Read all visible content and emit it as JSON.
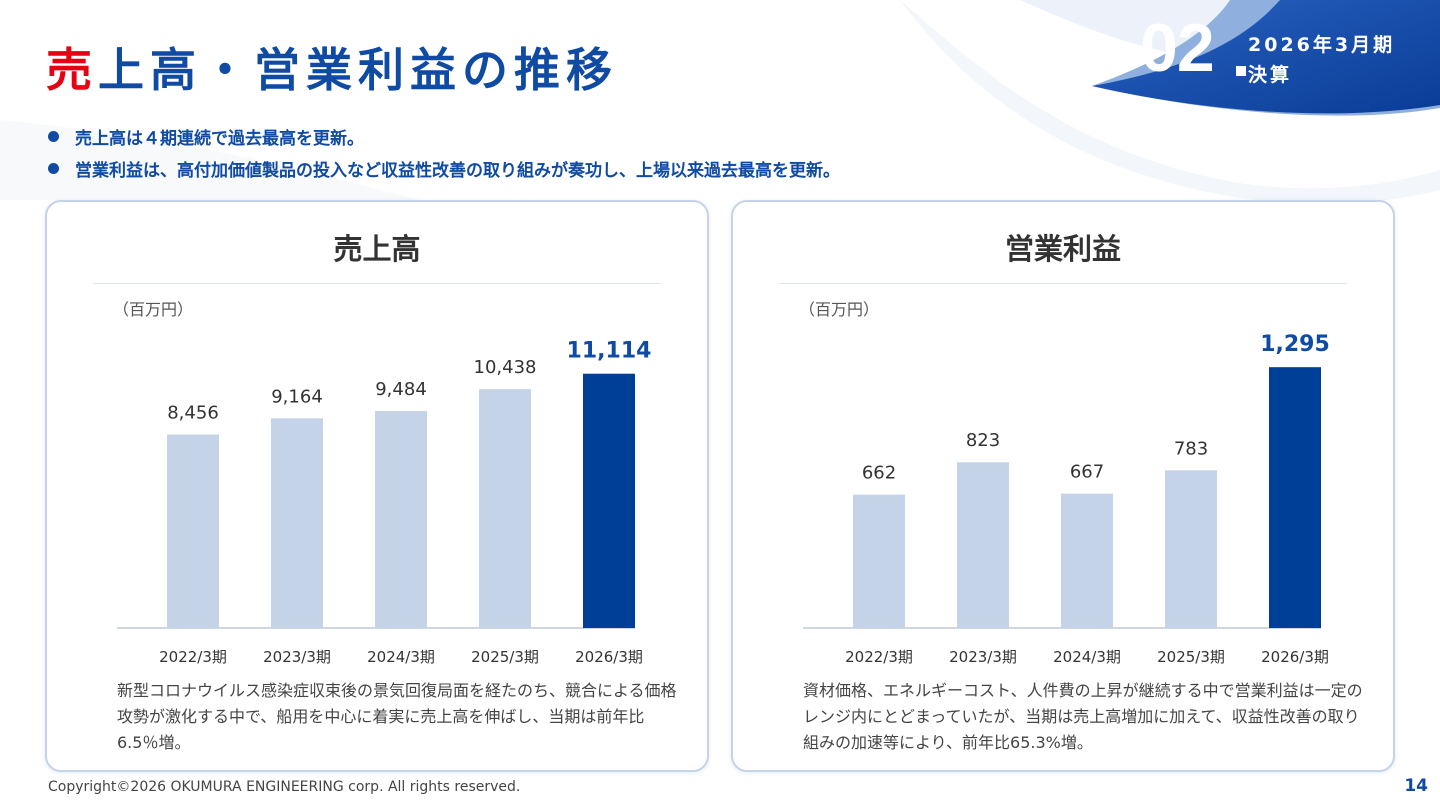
{
  "header": {
    "title_accent": "売",
    "title_rest": "上高・営業利益の推移",
    "section_number": "02",
    "section_period": "2026年3月期",
    "section_label": "決算"
  },
  "bullets": [
    "売上高は４期連続で過去最高を更新。",
    "営業利益は、高付加価値製品の投入など収益性改善の取り組みが奏功し、上場以来過去最高を更新。"
  ],
  "colors": {
    "brand_blue": "#0f4aa3",
    "accent_red": "#e60012",
    "highlight_bar": "#003f97",
    "past_bar": "#c5d3e9"
  },
  "sales_card": {
    "title": "売上高",
    "unit": "（百万円）",
    "note": "新型コロナウイルス感染症収束後の景気回復局面を経たのち、競合による価格攻勢が激化する中で、船用を中心に着実に売上高を伸ばし、当期は前年比6.5％増。"
  },
  "profit_card": {
    "title": "営業利益",
    "unit": "（百万円）",
    "note": "資材価格、エネルギーコスト、人件費の上昇が継続する中で営業利益は一定のレンジ内にとどまっていたが、当期は売上高増加に加えて、収益性改善の取り組みの加速等により、前年比65.3%増。"
  },
  "chart_data": [
    {
      "type": "bar",
      "title": "売上高",
      "ylabel": "（百万円）",
      "categories": [
        "2022/3期",
        "2023/3期",
        "2024/3期",
        "2025/3期",
        "2026/3期"
      ],
      "values": [
        8456,
        9164,
        9484,
        10438,
        11114
      ],
      "value_labels": [
        "8,456",
        "9,164",
        "9,484",
        "10,438",
        "11,114"
      ],
      "highlight_index": 4,
      "ylim": [
        0,
        12500
      ],
      "grid": false
    },
    {
      "type": "bar",
      "title": "営業利益",
      "ylabel": "（百万円）",
      "categories": [
        "2022/3期",
        "2023/3期",
        "2024/3期",
        "2025/3期",
        "2026/3期"
      ],
      "values": [
        662,
        823,
        667,
        783,
        1295
      ],
      "value_labels": [
        "662",
        "823",
        "667",
        "783",
        "1,295"
      ],
      "highlight_index": 4,
      "ylim": [
        0,
        1420
      ],
      "grid": false
    }
  ],
  "footer": {
    "copyright": "Copyright©2026 OKUMURA ENGINEERING corp. All rights reserved.",
    "page_number": "14"
  }
}
